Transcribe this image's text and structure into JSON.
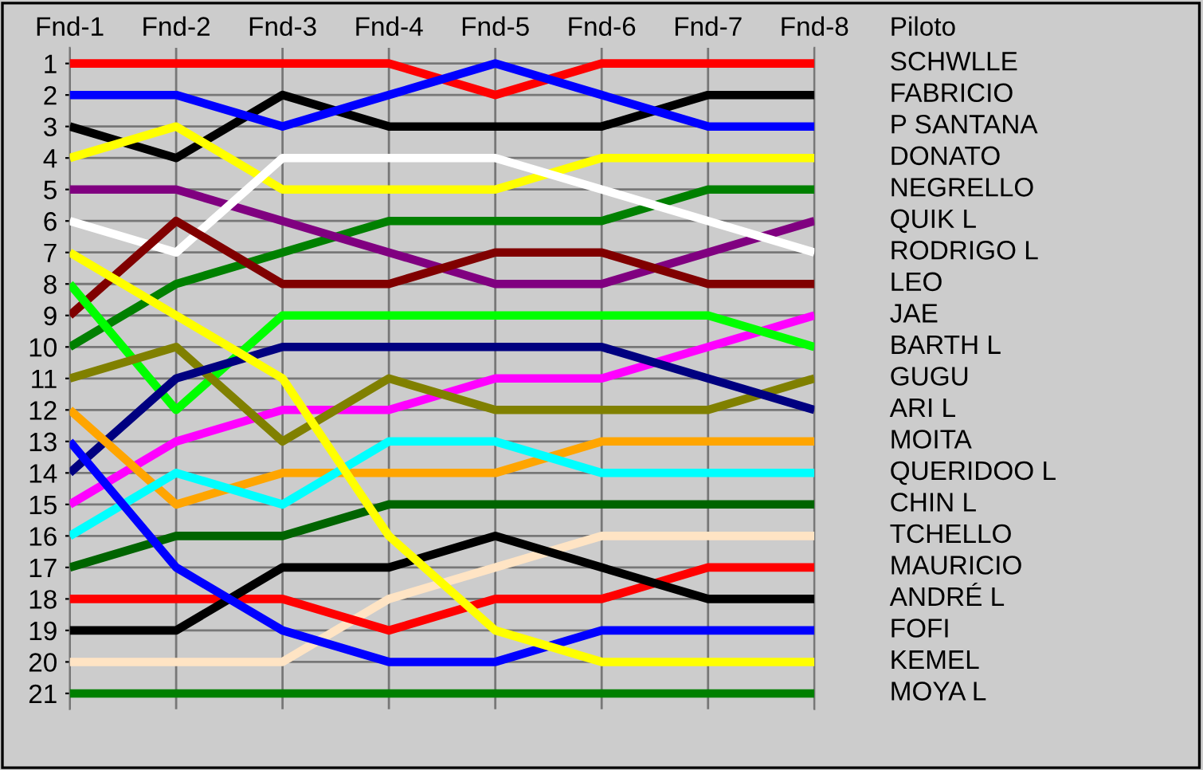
{
  "chart_data": {
    "type": "line",
    "legend_title": "Piloto",
    "categories": [
      "Fnd-1",
      "Fnd-2",
      "Fnd-3",
      "Fnd-4",
      "Fnd-5",
      "Fnd-6",
      "Fnd-7",
      "Fnd-8"
    ],
    "ylim": [
      21.5,
      0.5
    ],
    "yticks": [
      1,
      2,
      3,
      4,
      5,
      6,
      7,
      8,
      9,
      10,
      11,
      12,
      13,
      14,
      15,
      16,
      17,
      18,
      19,
      20,
      21
    ],
    "grid": true,
    "legend": false,
    "marker": "none",
    "line_style": "solid",
    "series": [
      {
        "name": "SCHWLLE",
        "color": "#ff0000",
        "values": [
          1,
          1,
          1,
          1,
          2,
          1,
          1,
          1
        ]
      },
      {
        "name": "FABRICIO",
        "color": "#000000",
        "values": [
          3,
          4,
          2,
          3,
          3,
          3,
          2,
          2
        ]
      },
      {
        "name": "P SANTANA",
        "color": "#0000ff",
        "values": [
          2,
          2,
          3,
          2,
          1,
          2,
          3,
          3
        ]
      },
      {
        "name": "DONATO",
        "color": "#ffff00",
        "values": [
          4,
          3,
          5,
          5,
          5,
          4,
          4,
          4
        ]
      },
      {
        "name": "NEGRELLO",
        "color": "#008000",
        "values": [
          10,
          8,
          7,
          6,
          6,
          6,
          5,
          5
        ]
      },
      {
        "name": "QUIK L",
        "color": "#800080",
        "values": [
          5,
          5,
          6,
          7,
          8,
          8,
          7,
          6
        ]
      },
      {
        "name": "RODRIGO L",
        "color": "#ffffff",
        "values": [
          6,
          7,
          4,
          4,
          4,
          5,
          6,
          7
        ]
      },
      {
        "name": "LEO",
        "color": "#800000",
        "values": [
          9,
          6,
          8,
          8,
          7,
          7,
          8,
          8
        ]
      },
      {
        "name": "JAE",
        "color": "#ff00ff",
        "values": [
          15,
          13,
          12,
          12,
          11,
          11,
          10,
          9
        ]
      },
      {
        "name": "BARTH L",
        "color": "#00ff00",
        "values": [
          8,
          12,
          9,
          9,
          9,
          9,
          9,
          10
        ]
      },
      {
        "name": "GUGU",
        "color": "#808000",
        "values": [
          11,
          10,
          13,
          11,
          12,
          12,
          12,
          11
        ]
      },
      {
        "name": "ARI L",
        "color": "#000080",
        "values": [
          14,
          11,
          10,
          10,
          10,
          10,
          11,
          12
        ]
      },
      {
        "name": "MOITA",
        "color": "#ffa500",
        "values": [
          12,
          15,
          14,
          14,
          14,
          13,
          13,
          13
        ]
      },
      {
        "name": "QUERIDOO L",
        "color": "#00ffff",
        "values": [
          16,
          14,
          15,
          13,
          13,
          14,
          14,
          14
        ]
      },
      {
        "name": "CHIN L",
        "color": "#006400",
        "values": [
          17,
          16,
          16,
          15,
          15,
          15,
          15,
          15
        ]
      },
      {
        "name": "TCHELLO",
        "color": "#ffe4c4",
        "values": [
          20,
          20,
          20,
          18,
          17,
          16,
          16,
          16
        ]
      },
      {
        "name": "MAURICIO",
        "color": "#ff0000",
        "values": [
          18,
          18,
          18,
          19,
          18,
          18,
          17,
          17
        ]
      },
      {
        "name": "ANDRÉ L",
        "color": "#000000",
        "values": [
          19,
          19,
          17,
          17,
          16,
          17,
          18,
          18
        ]
      },
      {
        "name": "FOFI",
        "color": "#0000ff",
        "values": [
          13,
          17,
          19,
          20,
          20,
          19,
          19,
          19
        ]
      },
      {
        "name": "KEMEL",
        "color": "#ffff00",
        "values": [
          7,
          9,
          11,
          16,
          19,
          20,
          20,
          20
        ]
      },
      {
        "name": "MOYA L",
        "color": "#008000",
        "values": [
          21,
          21,
          21,
          21,
          21,
          21,
          21,
          21
        ]
      }
    ]
  }
}
